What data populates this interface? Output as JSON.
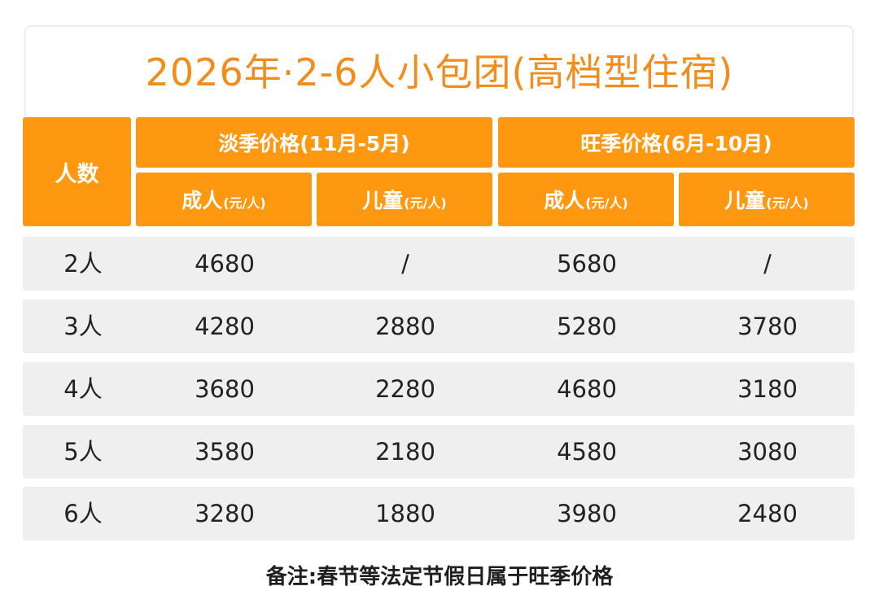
{
  "title": "2026年·2-6人小包团(高档型住宿)",
  "colors": {
    "accent": "#ff9811",
    "title": "#f28c1a",
    "row_bg": "#efefef"
  },
  "header": {
    "people": "人数",
    "off_season": "淡季价格(11月-5月)",
    "peak_season": "旺季价格(6月-10月)",
    "adult": "成人",
    "child": "儿童",
    "unit": "(元/人)"
  },
  "rows": [
    {
      "people": "2人",
      "off_adult": "4680",
      "off_child": "/",
      "peak_adult": "5680",
      "peak_child": "/"
    },
    {
      "people": "3人",
      "off_adult": "4280",
      "off_child": "2880",
      "peak_adult": "5280",
      "peak_child": "3780"
    },
    {
      "people": "4人",
      "off_adult": "3680",
      "off_child": "2280",
      "peak_adult": "4680",
      "peak_child": "3180"
    },
    {
      "people": "5人",
      "off_adult": "3580",
      "off_child": "2180",
      "peak_adult": "4580",
      "peak_child": "3080"
    },
    {
      "people": "6人",
      "off_adult": "3280",
      "off_child": "1880",
      "peak_adult": "3980",
      "peak_child": "2480"
    }
  ],
  "note": "备注:春节等法定节假日属于旺季价格"
}
